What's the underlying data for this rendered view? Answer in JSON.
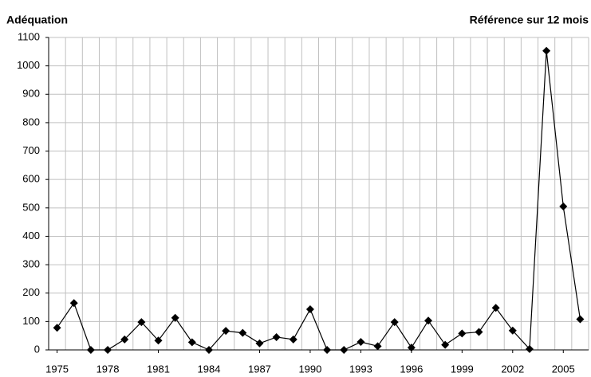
{
  "chart_data": {
    "type": "line",
    "title": "Adéquation",
    "subtitle": "Référence sur 12 mois",
    "x": [
      1975,
      1976,
      1977,
      1978,
      1979,
      1980,
      1981,
      1982,
      1983,
      1984,
      1985,
      1986,
      1987,
      1988,
      1989,
      1990,
      1991,
      1992,
      1993,
      1994,
      1995,
      1996,
      1997,
      1998,
      1999,
      2000,
      2001,
      2002,
      2003,
      2004,
      2005,
      2006
    ],
    "series": [
      {
        "color": "#000000",
        "values": [
          78,
          165,
          0,
          0,
          37,
          98,
          33,
          113,
          27,
          0,
          67,
          60,
          23,
          45,
          37,
          143,
          0,
          0,
          28,
          13,
          98,
          8,
          103,
          18,
          58,
          63,
          148,
          68,
          3,
          1053,
          505,
          108
        ]
      }
    ],
    "xlim": [
      1974.5,
      2006.5
    ],
    "xticks": [
      1975,
      1978,
      1981,
      1984,
      1987,
      1990,
      1993,
      1996,
      1999,
      2002,
      2005
    ],
    "ylim": [
      0,
      1100
    ],
    "yticks": [
      0,
      100,
      200,
      300,
      400,
      500,
      600,
      700,
      800,
      900,
      1000,
      1100
    ],
    "grid": true
  }
}
